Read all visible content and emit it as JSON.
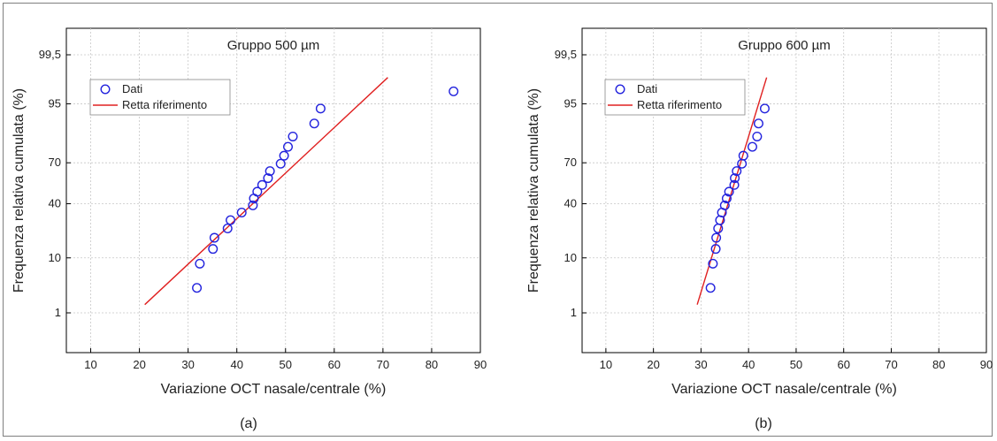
{
  "chart_data": [
    {
      "type": "scatter",
      "panel_caption": "(a)",
      "title": "Gruppo 500 µm",
      "xlabel": "Variazione OCT nasale/centrale (%)",
      "ylabel": "Frequenza relativa cumulata (%)",
      "xlim": [
        5,
        90
      ],
      "x_ticks": [
        10,
        20,
        30,
        40,
        50,
        60,
        70,
        80,
        90
      ],
      "y_scale": "probability",
      "y_ticks": [
        1,
        10,
        40,
        70,
        95,
        99.5
      ],
      "y_tick_labels": [
        "1",
        "10",
        "40",
        "70",
        "95",
        "99,5"
      ],
      "grid": true,
      "legend_position": "top-left",
      "legend": [
        "Dati",
        "Retta riferimento"
      ],
      "series": [
        {
          "name": "Dati",
          "marker": "circle",
          "points": [
            {
              "x": 31.8,
              "y": 3.2
            },
            {
              "x": 32.4,
              "y": 8.2
            },
            {
              "x": 35.1,
              "y": 13.3
            },
            {
              "x": 35.4,
              "y": 18.4
            },
            {
              "x": 38.1,
              "y": 23.5
            },
            {
              "x": 38.7,
              "y": 28.6
            },
            {
              "x": 41.0,
              "y": 33.7
            },
            {
              "x": 43.3,
              "y": 38.8
            },
            {
              "x": 43.5,
              "y": 43.9
            },
            {
              "x": 44.2,
              "y": 49.0
            },
            {
              "x": 45.2,
              "y": 54.1
            },
            {
              "x": 46.4,
              "y": 59.2
            },
            {
              "x": 46.8,
              "y": 64.3
            },
            {
              "x": 49.0,
              "y": 69.4
            },
            {
              "x": 49.7,
              "y": 74.5
            },
            {
              "x": 50.5,
              "y": 79.6
            },
            {
              "x": 51.5,
              "y": 84.7
            },
            {
              "x": 55.9,
              "y": 89.8
            },
            {
              "x": 57.2,
              "y": 94.0
            },
            {
              "x": 84.5,
              "y": 97.0
            }
          ]
        },
        {
          "name": "Retta riferimento",
          "type": "line",
          "points": [
            {
              "x": 21.1,
              "y": 1.5
            },
            {
              "x": 71.0,
              "y": 98.4
            }
          ]
        }
      ],
      "colors": {
        "markers": "#2222dd",
        "line": "#e02020"
      }
    },
    {
      "type": "scatter",
      "panel_caption": "(b)",
      "title": "Gruppo 600 µm",
      "xlabel": "Variazione OCT nasale/centrale (%)",
      "ylabel": "Frequenza relativa cumulata (%)",
      "xlim": [
        5,
        90
      ],
      "x_ticks": [
        10,
        20,
        30,
        40,
        50,
        60,
        70,
        80,
        90
      ],
      "y_scale": "probability",
      "y_ticks": [
        1,
        10,
        40,
        70,
        95,
        99.5
      ],
      "y_tick_labels": [
        "1",
        "10",
        "40",
        "70",
        "95",
        "99,5"
      ],
      "grid": true,
      "legend_position": "top-left",
      "legend": [
        "Dati",
        "Retta riferimento"
      ],
      "series": [
        {
          "name": "Dati",
          "marker": "circle",
          "points": [
            {
              "x": 32.0,
              "y": 3.2
            },
            {
              "x": 32.5,
              "y": 8.2
            },
            {
              "x": 33.1,
              "y": 13.3
            },
            {
              "x": 33.2,
              "y": 18.4
            },
            {
              "x": 33.6,
              "y": 23.5
            },
            {
              "x": 34.0,
              "y": 28.6
            },
            {
              "x": 34.4,
              "y": 33.7
            },
            {
              "x": 35.0,
              "y": 38.8
            },
            {
              "x": 35.4,
              "y": 43.9
            },
            {
              "x": 35.9,
              "y": 49.0
            },
            {
              "x": 37.0,
              "y": 54.1
            },
            {
              "x": 37.1,
              "y": 59.2
            },
            {
              "x": 37.5,
              "y": 64.3
            },
            {
              "x": 38.6,
              "y": 69.4
            },
            {
              "x": 38.9,
              "y": 74.5
            },
            {
              "x": 40.8,
              "y": 79.6
            },
            {
              "x": 41.8,
              "y": 84.7
            },
            {
              "x": 42.1,
              "y": 89.8
            },
            {
              "x": 43.4,
              "y": 94.0
            }
          ]
        },
        {
          "name": "Retta riferimento",
          "type": "line",
          "points": [
            {
              "x": 29.2,
              "y": 1.5
            },
            {
              "x": 43.8,
              "y": 98.4
            }
          ]
        }
      ],
      "colors": {
        "markers": "#2222dd",
        "line": "#e02020"
      }
    }
  ]
}
